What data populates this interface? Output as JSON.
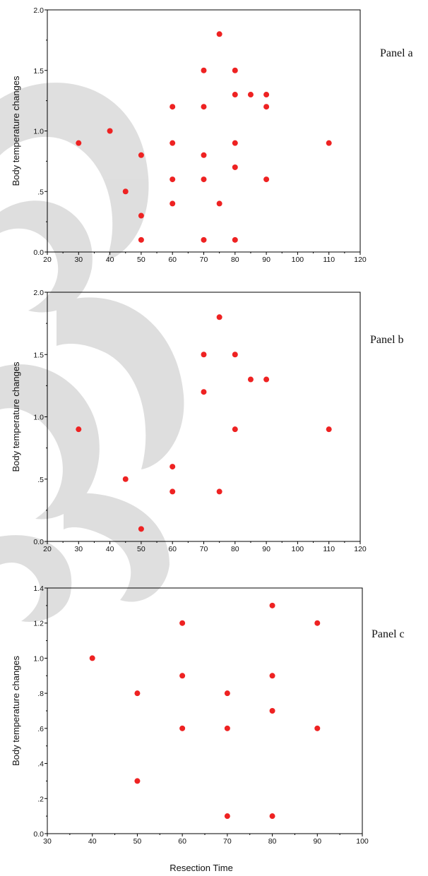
{
  "colors": {
    "point": "#ee2222",
    "axis": "#000000",
    "watermark": "#cccccc"
  },
  "x_axis_label": "Resection Time",
  "chart_data": [
    {
      "type": "scatter",
      "panel_label": "Panel a",
      "ylabel": "Body temperature changes",
      "xlim": [
        20,
        120
      ],
      "ylim": [
        0,
        2
      ],
      "xticks": [
        "20",
        "30",
        "40",
        "50",
        "60",
        "70",
        "80",
        "90",
        "100",
        "110",
        "120"
      ],
      "yticks": [
        "0.0",
        ".5",
        "1.0",
        "1.5",
        "2.0"
      ],
      "points": [
        [
          30,
          0.9
        ],
        [
          40,
          1.0
        ],
        [
          45,
          0.5
        ],
        [
          50,
          0.8
        ],
        [
          50,
          0.3
        ],
        [
          50,
          0.1
        ],
        [
          60,
          1.2
        ],
        [
          60,
          0.9
        ],
        [
          60,
          0.6
        ],
        [
          60,
          0.4
        ],
        [
          70,
          1.5
        ],
        [
          70,
          1.2
        ],
        [
          70,
          0.8
        ],
        [
          70,
          0.6
        ],
        [
          70,
          0.1
        ],
        [
          75,
          1.8
        ],
        [
          75,
          0.4
        ],
        [
          80,
          1.5
        ],
        [
          80,
          1.3
        ],
        [
          80,
          0.9
        ],
        [
          80,
          0.7
        ],
        [
          80,
          0.1
        ],
        [
          85,
          1.3
        ],
        [
          90,
          1.3
        ],
        [
          90,
          1.2
        ],
        [
          90,
          0.6
        ],
        [
          110,
          0.9
        ]
      ]
    },
    {
      "type": "scatter",
      "panel_label": "Panel b",
      "ylabel": "Body temperature changes",
      "xlim": [
        20,
        120
      ],
      "ylim": [
        0,
        2
      ],
      "xticks": [
        "20",
        "30",
        "40",
        "50",
        "60",
        "70",
        "80",
        "90",
        "100",
        "110",
        "120"
      ],
      "yticks": [
        "0.0",
        ".5",
        "1.0",
        "1.5",
        "2.0"
      ],
      "points": [
        [
          30,
          0.9
        ],
        [
          45,
          0.5
        ],
        [
          50,
          0.1
        ],
        [
          60,
          0.6
        ],
        [
          60,
          0.4
        ],
        [
          70,
          1.5
        ],
        [
          70,
          1.2
        ],
        [
          75,
          1.8
        ],
        [
          75,
          0.4
        ],
        [
          80,
          1.5
        ],
        [
          80,
          0.9
        ],
        [
          85,
          1.3
        ],
        [
          90,
          1.3
        ],
        [
          110,
          0.9
        ]
      ]
    },
    {
      "type": "scatter",
      "panel_label": "Panel c",
      "ylabel": "Body temperature changes",
      "xlim": [
        30,
        100
      ],
      "ylim": [
        0,
        1.4
      ],
      "xticks": [
        "30",
        "40",
        "50",
        "60",
        "70",
        "80",
        "90",
        "100"
      ],
      "yticks": [
        "0.0",
        ".2",
        ".4",
        ".6",
        ".8",
        "1.0",
        "1.2",
        "1.4"
      ],
      "points": [
        [
          40,
          1.0
        ],
        [
          50,
          0.8
        ],
        [
          50,
          0.3
        ],
        [
          60,
          1.2
        ],
        [
          60,
          0.9
        ],
        [
          60,
          0.6
        ],
        [
          70,
          0.8
        ],
        [
          70,
          0.6
        ],
        [
          70,
          0.1
        ],
        [
          80,
          1.3
        ],
        [
          80,
          0.9
        ],
        [
          80,
          0.7
        ],
        [
          80,
          0.1
        ],
        [
          90,
          1.2
        ],
        [
          90,
          0.6
        ]
      ]
    }
  ]
}
